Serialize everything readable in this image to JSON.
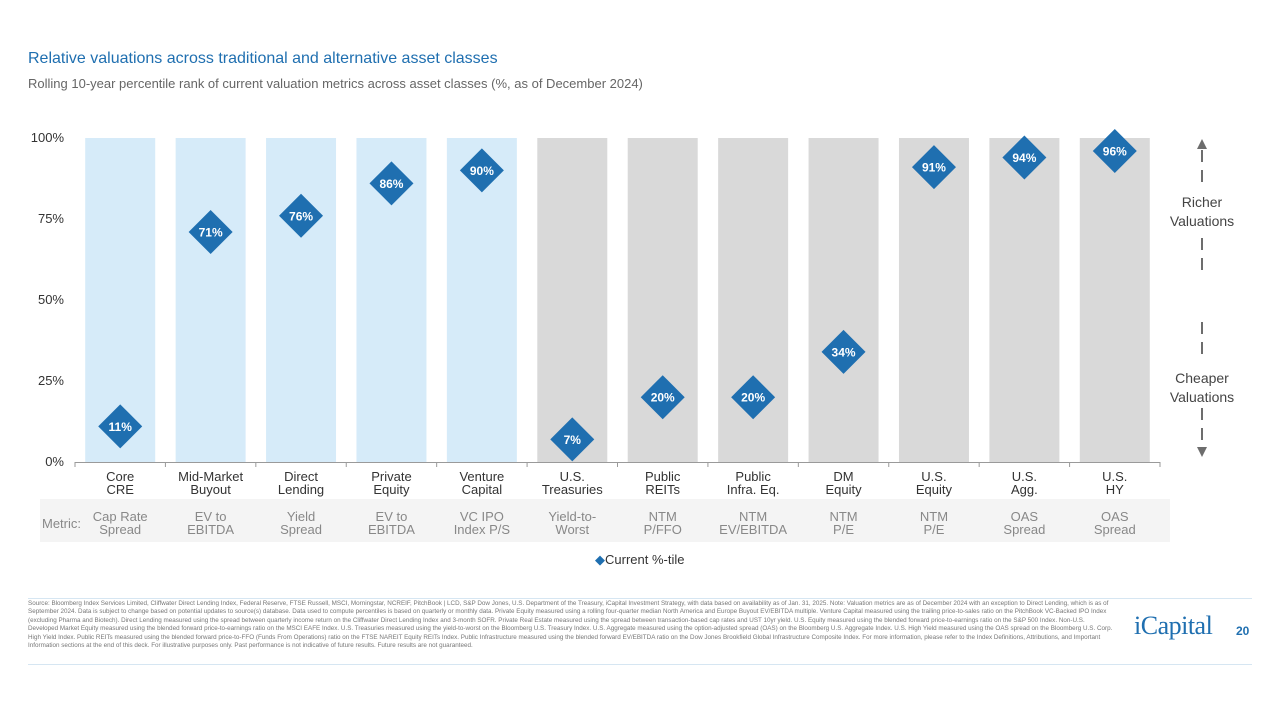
{
  "header": {
    "title": "Relative valuations across traditional and alternative asset classes",
    "subtitle": "Rolling 10-year percentile rank of current valuation metrics across asset classes (%, as of December 2024)"
  },
  "chart_data": {
    "type": "bar",
    "title": "Relative valuations across traditional and alternative asset classes",
    "subtitle": "Rolling 10-year percentile rank of current valuation metrics across asset classes (%, as of December 2024)",
    "ylim": [
      0,
      100
    ],
    "yticks": [
      "0%",
      "25%",
      "50%",
      "75%",
      "100%"
    ],
    "ytick_values": [
      0,
      25,
      50,
      75,
      100
    ],
    "categories": [
      {
        "line1": "Core",
        "line2": "CRE",
        "metric1": "Cap Rate",
        "metric2": "Spread",
        "group": "alternative"
      },
      {
        "line1": "Mid-Market",
        "line2": "Buyout",
        "metric1": "EV to",
        "metric2": "EBITDA",
        "group": "alternative"
      },
      {
        "line1": "Direct",
        "line2": "Lending",
        "metric1": "Yield",
        "metric2": "Spread",
        "group": "alternative"
      },
      {
        "line1": "Private",
        "line2": "Equity",
        "metric1": "EV to",
        "metric2": "EBITDA",
        "group": "alternative"
      },
      {
        "line1": "Venture",
        "line2": "Capital",
        "metric1": "VC IPO",
        "metric2": "Index P/S",
        "group": "alternative"
      },
      {
        "line1": "U.S.",
        "line2": "Treasuries",
        "metric1": "Yield-to-",
        "metric2": "Worst",
        "group": "traditional"
      },
      {
        "line1": "Public",
        "line2": "REITs",
        "metric1": "NTM",
        "metric2": "P/FFO",
        "group": "traditional"
      },
      {
        "line1": "Public",
        "line2": "Infra. Eq.",
        "metric1": "NTM",
        "metric2": "EV/EBITDA",
        "group": "traditional"
      },
      {
        "line1": "DM",
        "line2": "Equity",
        "metric1": "NTM",
        "metric2": "P/E",
        "group": "traditional"
      },
      {
        "line1": "U.S.",
        "line2": "Equity",
        "metric1": "NTM",
        "metric2": "P/E",
        "group": "traditional"
      },
      {
        "line1": "U.S.",
        "line2": "Agg.",
        "metric1": "OAS",
        "metric2": "Spread",
        "group": "traditional"
      },
      {
        "line1": "U.S.",
        "line2": "HY",
        "metric1": "OAS",
        "metric2": "Spread",
        "group": "traditional"
      }
    ],
    "series": [
      {
        "name": "Current %-tile",
        "values": [
          11,
          71,
          76,
          86,
          90,
          7,
          20,
          20,
          34,
          91,
          94,
          96
        ],
        "labels": [
          "11%",
          "71%",
          "76%",
          "86%",
          "90%",
          "7%",
          "20%",
          "20%",
          "34%",
          "91%",
          "94%",
          "96%"
        ]
      }
    ],
    "metric_row_label": "Metric:",
    "annotations": {
      "upper_line1": "Richer",
      "upper_line2": "Valuations",
      "lower_line1": "Cheaper",
      "lower_line2": "Valuations"
    },
    "legend": {
      "marker": "◆",
      "label": "Current %-tile",
      "position": "bottom-center"
    },
    "colors": {
      "alternative_bar": "#d6ebf9",
      "traditional_bar": "#d9d9d9",
      "marker": "#1f6fb0",
      "axis": "#9a9a9a",
      "arrow": "#6d6d6d"
    }
  },
  "footer": {
    "source": "Source: Bloomberg Index Services Limited, Cliffwater Direct Lending Index, Federal Reserve, FTSE Russell, MSCI, Morningstar, NCREIF, PitchBook | LCD, S&P Dow Jones, U.S. Department of the Treasury, iCapital Investment Strategy, with data based on availability as of Jan. 31, 2025. Note: Valuation metrics are as of December 2024 with an exception to Direct Lending, which is as of September 2024. Data is subject to change based on potential updates to source(s) database. Data used to compute percentiles is based on quarterly or monthly data. Private Equity measured using a rolling four-quarter median North America and Europe Buyout EV/EBITDA multiple. Venture Capital measured using the trailing price-to-sales ratio on the PitchBook VC-Backed IPO Index (excluding Pharma and Biotech). Direct Lending measured using the spread between quarterly income return on the Cliffwater Direct Lending Index and 3-month SOFR. Private Real Estate measured using the spread between transaction-based cap rates and UST 10yr yield. U.S. Equity measured using the blended forward price-to-earnings ratio on the S&P 500 Index. Non-U.S. Developed Market Equity measured using the blended forward price-to-earnings ratio on the MSCI EAFE Index. U.S. Treasuries measured using the yield-to-worst on the Bloomberg U.S. Treasury Index. U.S. Aggregate measured using the option-adjusted spread (OAS) on the Bloomberg U.S. Aggregate Index. U.S. High Yield measured using the OAS spread on the Bloomberg U.S. Corp. High Yield Index. Public REITs measured using the blended forward price-to-FFO (Funds From Operations) ratio on the FTSE NAREIT Equity REITs Index. Public Infrastructure measured using the blended forward EV/EBITDA ratio on the Dow Jones Brookfield Global Infrastructure Composite Index. For more information, please refer to the Index Definitions, Attributions, and Important Information sections at the end of this deck. For illustrative purposes only. Past performance is not indicative of future results. Future results are not guaranteed.",
    "logo": "iCapital",
    "page_number": "20"
  }
}
